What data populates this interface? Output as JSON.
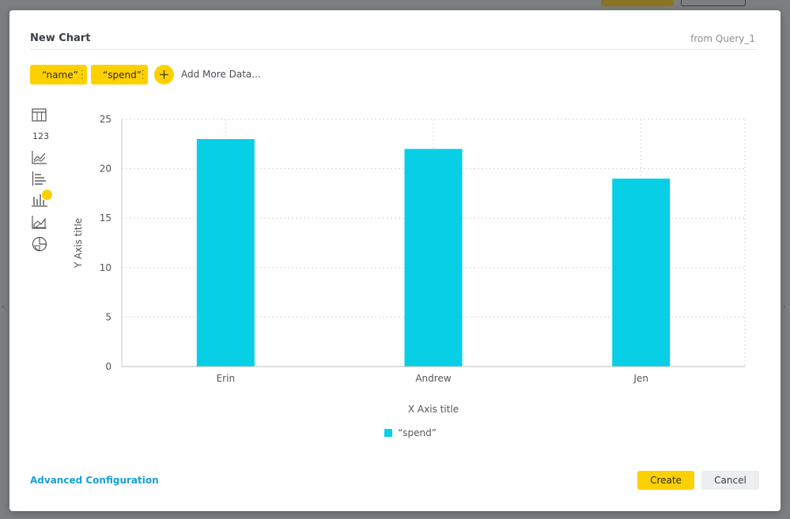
{
  "modal": {
    "title": "New Chart",
    "source": "from Query_1"
  },
  "data_fields": [
    {
      "label": "“name”"
    },
    {
      "label": "“spend”"
    }
  ],
  "add_more_label": "Add More Data...",
  "chart_types": [
    {
      "icon": "table-icon"
    },
    {
      "icon": "number-icon",
      "label": "123"
    },
    {
      "icon": "line-chart-icon"
    },
    {
      "icon": "horizontal-bar-chart-icon"
    },
    {
      "icon": "vertical-bar-chart-icon",
      "selected": true
    },
    {
      "icon": "area-chart-icon"
    },
    {
      "icon": "pie-chart-icon"
    }
  ],
  "chart_data": {
    "type": "bar",
    "categories": [
      "Erin",
      "Andrew",
      "Jen"
    ],
    "series": [
      {
        "name": "“spend”",
        "values": [
          23,
          22,
          19
        ],
        "color": "#06cfe6"
      }
    ],
    "xlabel": "X Axis title",
    "ylabel": "Y Axis title",
    "ylim": [
      0,
      25
    ],
    "yticks": [
      0,
      5,
      10,
      15,
      20,
      25
    ],
    "grid": true,
    "legend_position": "bottom"
  },
  "footer": {
    "advanced_label": "Advanced Configuration",
    "create_label": "Create",
    "cancel_label": "Cancel"
  },
  "colors": {
    "accent": "#ffd000",
    "link": "#1a9fd6",
    "bar": "#06cfe6"
  }
}
